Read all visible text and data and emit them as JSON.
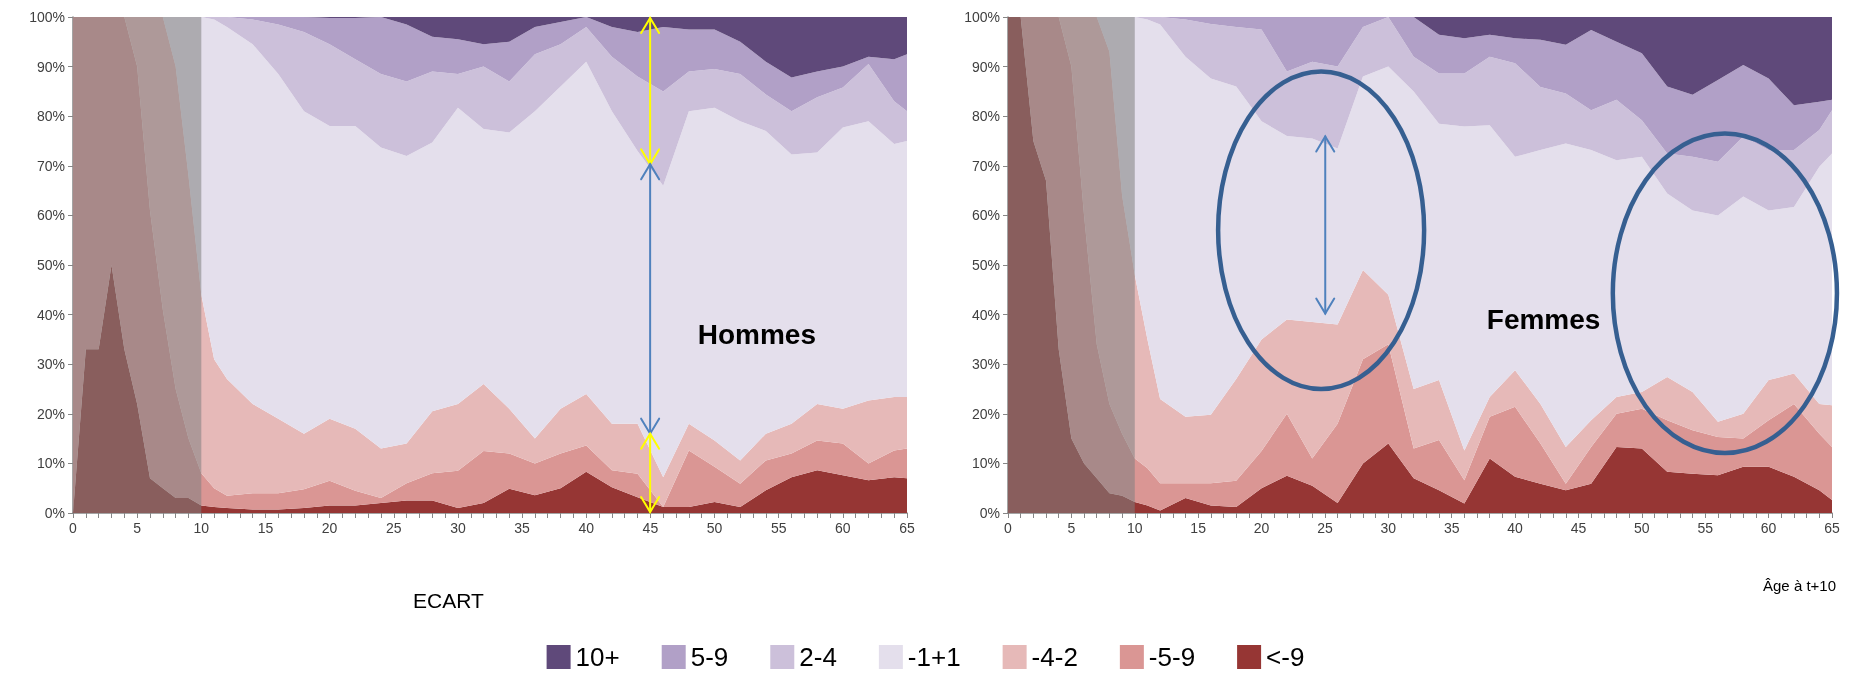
{
  "chart_data": [
    {
      "type": "area",
      "stacked": true,
      "xlabel": "ECART",
      "annotations": [
        "Hommes"
      ],
      "legend": "bottom",
      "x": [
        0,
        1,
        2,
        3,
        4,
        5,
        6,
        7,
        8,
        9,
        10,
        11,
        12,
        14,
        16,
        18,
        20,
        22,
        24,
        26,
        28,
        30,
        32,
        34,
        36,
        38,
        40,
        42,
        44,
        46,
        48,
        50,
        52,
        54,
        56,
        58,
        60,
        62,
        64,
        65
      ],
      "xlim": [
        0,
        65
      ],
      "xticks": [
        0,
        {
          "value": 1,
          "label": null
        },
        {
          "value": 2,
          "label": null
        },
        {
          "value": 3,
          "label": null
        },
        {
          "value": 4,
          "label": null
        },
        5,
        {
          "value": 6,
          "label": null
        },
        {
          "value": 7,
          "label": null
        },
        {
          "value": 8,
          "label": null
        },
        {
          "value": 9,
          "label": null
        },
        10,
        {
          "value": 11,
          "label": null
        },
        {
          "value": 12,
          "label": null
        },
        {
          "value": 13,
          "label": null
        },
        {
          "value": 14,
          "label": null
        },
        15,
        {
          "value": 16,
          "label": null
        },
        {
          "value": 17,
          "label": null
        },
        {
          "value": 18,
          "label": null
        },
        {
          "value": 19,
          "label": null
        },
        20,
        {
          "value": 21,
          "label": null
        },
        {
          "value": 22,
          "label": null
        },
        {
          "value": 23,
          "label": null
        },
        {
          "value": 24,
          "label": null
        },
        25,
        {
          "value": 26,
          "label": null
        },
        {
          "value": 27,
          "label": null
        },
        {
          "value": 28,
          "label": null
        },
        {
          "value": 29,
          "label": null
        },
        30,
        {
          "value": 31,
          "label": null
        },
        {
          "value": 32,
          "label": null
        },
        {
          "value": 33,
          "label": null
        },
        {
          "value": 34,
          "label": null
        },
        35,
        {
          "value": 36,
          "label": null
        },
        {
          "value": 37,
          "label": null
        },
        {
          "value": 38,
          "label": null
        },
        {
          "value": 39,
          "label": null
        },
        40,
        {
          "value": 41,
          "label": null
        },
        {
          "value": 42,
          "label": null
        },
        {
          "value": 43,
          "label": null
        },
        {
          "value": 44,
          "label": null
        },
        45,
        {
          "value": 46,
          "label": null
        },
        {
          "value": 47,
          "label": null
        },
        {
          "value": 48,
          "label": null
        },
        {
          "value": 49,
          "label": null
        },
        50,
        {
          "value": 51,
          "label": null
        },
        {
          "value": 52,
          "label": null
        },
        {
          "value": 53,
          "label": null
        },
        {
          "value": 54,
          "label": null
        },
        55,
        {
          "value": 56,
          "label": null
        },
        {
          "value": 57,
          "label": null
        },
        {
          "value": 58,
          "label": null
        },
        {
          "value": 59,
          "label": null
        },
        60,
        {
          "value": 61,
          "label": null
        },
        {
          "value": 62,
          "label": null
        },
        {
          "value": 63,
          "label": null
        },
        {
          "value": 64,
          "label": null
        },
        65
      ],
      "ylim": [
        0,
        100
      ],
      "yticks": [
        {
          "value": 0,
          "label": "0%"
        },
        {
          "value": 10,
          "label": "10%"
        },
        {
          "value": 20,
          "label": "20%"
        },
        {
          "value": 30,
          "label": "30%"
        },
        {
          "value": 40,
          "label": "40%"
        },
        {
          "value": 50,
          "label": "50%"
        },
        {
          "value": 60,
          "label": "60%"
        },
        {
          "value": 70,
          "label": "70%"
        },
        {
          "value": 80,
          "label": "80%"
        },
        {
          "value": 90,
          "label": "90%"
        },
        {
          "value": 100,
          "label": "100%"
        }
      ],
      "bands": [
        {
          "axis": "x",
          "from": 0,
          "to": 10,
          "color": "#808080"
        }
      ],
      "series": [
        {
          "name": "<-9",
          "color": "#963634",
          "values": [
            0,
            33,
            33,
            50,
            33,
            22,
            7,
            5,
            3,
            3,
            1.5,
            1.2,
            1,
            0.7,
            0.7,
            1,
            1.5,
            1.5,
            2,
            2.5,
            2.5,
            1,
            2,
            4.9,
            3.6,
            5,
            8.3,
            5.2,
            3.2,
            1.2,
            1.2,
            2.2,
            1.2,
            4.6,
            7.2,
            8.6,
            7.6,
            6.6,
            7.2,
            7
          ]
        },
        {
          "name": "-5-9",
          "color": "#da9694",
          "values": [
            100,
            67,
            67,
            50,
            67,
            68,
            54,
            36,
            22,
            12,
            6.5,
            3.8,
            2.5,
            3.3,
            3.3,
            3.8,
            5,
            3,
            1,
            3.5,
            5.5,
            7.5,
            10.5,
            7.1,
            6.4,
            7,
            5.3,
            3.4,
            4.7,
            0,
            11.4,
            7.1,
            4.7,
            6,
            4.8,
            6,
            6.4,
            3.4,
            5.4,
            6
          ]
        },
        {
          "name": "-4-2",
          "color": "#e6b9b8",
          "values": [
            0,
            0,
            0,
            0,
            0,
            10,
            39,
            59,
            65,
            53,
            36,
            26,
            23.5,
            18,
            15,
            11.2,
            12.5,
            12.5,
            10,
            8,
            12.5,
            13.5,
            13.5,
            9,
            5,
            9,
            10.4,
            9.4,
            10.1,
            6,
            5.4,
            5.3,
            4.7,
            5.4,
            6,
            7.4,
            7,
            12.7,
            10.8,
            10.4
          ]
        },
        {
          "name": "-1+1",
          "color": "#e4dfec",
          "values": [
            0,
            0,
            0,
            0,
            0,
            0,
            0,
            0,
            10,
            32,
            56,
            68.5,
            71,
            72.5,
            69.5,
            65,
            59,
            61,
            60.7,
            58,
            54.2,
            59.7,
            51.4,
            55.7,
            66,
            65,
            67,
            63,
            55,
            58.8,
            63,
            67.1,
            68.4,
            61,
            54.3,
            50.7,
            56.7,
            56.3,
            51,
            51.6
          ]
        },
        {
          "name": "2-4",
          "color": "#ccc0da",
          "values": [
            0,
            0,
            0,
            0,
            0,
            0,
            0,
            0,
            0,
            0,
            0,
            0.5,
            2,
            5,
            10,
            16,
            16.5,
            13.5,
            14.8,
            15,
            14.3,
            6.8,
            12.6,
            10.3,
            11.5,
            8.5,
            7,
            11,
            15,
            19,
            8,
            7.8,
            9.5,
            7.4,
            8.7,
            11.1,
            8.1,
            11.5,
            8.6,
            6
          ]
        },
        {
          "name": "5-9",
          "color": "#b1a0c7",
          "values": [
            0,
            0,
            0,
            0,
            0,
            0,
            0,
            0,
            0,
            0,
            0,
            0,
            0,
            0.5,
            1.5,
            3,
            5.3,
            8.3,
            11.5,
            11.5,
            7,
            7,
            4.5,
            8,
            5.5,
            4.5,
            2,
            6,
            9,
            13,
            8.5,
            8,
            6.5,
            6.6,
            6.8,
            5.2,
            4.2,
            1.5,
            8.5,
            11.5
          ]
        },
        {
          "name": "10+",
          "color": "#5f497a",
          "values": [
            0,
            0,
            0,
            0,
            0,
            0,
            0,
            0,
            0,
            0,
            0,
            0,
            0,
            0,
            0,
            0,
            0.2,
            0.2,
            0,
            1.5,
            4,
            4.5,
            5.5,
            5,
            2,
            1,
            0,
            2,
            3,
            2,
            2.5,
            2.5,
            5,
            9,
            12.2,
            11,
            10,
            8,
            8.5,
            7.5
          ]
        }
      ]
    },
    {
      "type": "area",
      "stacked": true,
      "xlabel": "Âge à t+10",
      "annotations": [
        "Femmes"
      ],
      "legend": "bottom",
      "x": [
        0,
        1,
        2,
        3,
        4,
        5,
        6,
        7,
        8,
        9,
        10,
        11,
        12,
        14,
        16,
        18,
        20,
        22,
        24,
        26,
        28,
        30,
        32,
        34,
        36,
        38,
        40,
        42,
        44,
        46,
        48,
        50,
        52,
        54,
        56,
        58,
        60,
        62,
        64,
        65
      ],
      "xlim": [
        0,
        65
      ],
      "xticks": [
        0,
        {
          "value": 1,
          "label": null
        },
        {
          "value": 2,
          "label": null
        },
        {
          "value": 3,
          "label": null
        },
        {
          "value": 4,
          "label": null
        },
        5,
        {
          "value": 6,
          "label": null
        },
        {
          "value": 7,
          "label": null
        },
        {
          "value": 8,
          "label": null
        },
        {
          "value": 9,
          "label": null
        },
        10,
        {
          "value": 11,
          "label": null
        },
        {
          "value": 12,
          "label": null
        },
        {
          "value": 13,
          "label": null
        },
        {
          "value": 14,
          "label": null
        },
        15,
        {
          "value": 16,
          "label": null
        },
        {
          "value": 17,
          "label": null
        },
        {
          "value": 18,
          "label": null
        },
        {
          "value": 19,
          "label": null
        },
        20,
        {
          "value": 21,
          "label": null
        },
        {
          "value": 22,
          "label": null
        },
        {
          "value": 23,
          "label": null
        },
        {
          "value": 24,
          "label": null
        },
        25,
        {
          "value": 26,
          "label": null
        },
        {
          "value": 27,
          "label": null
        },
        {
          "value": 28,
          "label": null
        },
        {
          "value": 29,
          "label": null
        },
        30,
        {
          "value": 31,
          "label": null
        },
        {
          "value": 32,
          "label": null
        },
        {
          "value": 33,
          "label": null
        },
        {
          "value": 34,
          "label": null
        },
        35,
        {
          "value": 36,
          "label": null
        },
        {
          "value": 37,
          "label": null
        },
        {
          "value": 38,
          "label": null
        },
        {
          "value": 39,
          "label": null
        },
        40,
        {
          "value": 41,
          "label": null
        },
        {
          "value": 42,
          "label": null
        },
        {
          "value": 43,
          "label": null
        },
        {
          "value": 44,
          "label": null
        },
        45,
        {
          "value": 46,
          "label": null
        },
        {
          "value": 47,
          "label": null
        },
        {
          "value": 48,
          "label": null
        },
        {
          "value": 49,
          "label": null
        },
        50,
        {
          "value": 51,
          "label": null
        },
        {
          "value": 52,
          "label": null
        },
        {
          "value": 53,
          "label": null
        },
        {
          "value": 54,
          "label": null
        },
        55,
        {
          "value": 56,
          "label": null
        },
        {
          "value": 57,
          "label": null
        },
        {
          "value": 58,
          "label": null
        },
        {
          "value": 59,
          "label": null
        },
        60,
        {
          "value": 61,
          "label": null
        },
        {
          "value": 62,
          "label": null
        },
        {
          "value": 63,
          "label": null
        },
        {
          "value": 64,
          "label": null
        },
        65
      ],
      "ylim": [
        0,
        100
      ],
      "yticks": [
        {
          "value": 0,
          "label": "0%"
        },
        {
          "value": 10,
          "label": "10%"
        },
        {
          "value": 20,
          "label": "20%"
        },
        {
          "value": 30,
          "label": "30%"
        },
        {
          "value": 40,
          "label": "40%"
        },
        {
          "value": 50,
          "label": "50%"
        },
        {
          "value": 60,
          "label": "60%"
        },
        {
          "value": 70,
          "label": "70%"
        },
        {
          "value": 80,
          "label": "80%"
        },
        {
          "value": 90,
          "label": "90%"
        },
        {
          "value": 100,
          "label": "100%"
        }
      ],
      "bands": [
        {
          "axis": "x",
          "from": 0,
          "to": 10,
          "color": "#808080"
        }
      ],
      "series": [
        {
          "name": "<-9",
          "color": "#963634",
          "values": [
            100,
            100,
            75,
            67,
            33,
            15,
            10,
            7,
            4,
            3.5,
            2.2,
            1.5,
            0.5,
            3,
            1.5,
            1.2,
            5,
            7.5,
            5.5,
            2,
            10,
            14,
            7,
            4.6,
            1.9,
            11,
            7.3,
            5.9,
            4.6,
            5.9,
            13.3,
            13,
            8.3,
            7.9,
            7.6,
            9.3,
            9.3,
            7.3,
            4.6,
            2.6
          ]
        },
        {
          "name": "-5-9",
          "color": "#da9694",
          "values": [
            0,
            0,
            25,
            33,
            67,
            75,
            50,
            27,
            18,
            12.5,
            8.8,
            7.5,
            5.5,
            3,
            4.5,
            5.3,
            7.5,
            12.5,
            5.5,
            16,
            21,
            20,
            6,
            10.1,
            4.7,
            8.4,
            14.1,
            8.1,
            1.3,
            7.4,
            6.7,
            8,
            10.4,
            8.8,
            7.7,
            5.7,
            9.4,
            14.7,
            11.4,
            10.7
          ]
        },
        {
          "name": "-4-2",
          "color": "#e6b9b8",
          "values": [
            0,
            0,
            0,
            0,
            0,
            10,
            40,
            66,
            71,
            48,
            37,
            26,
            17,
            13.4,
            13.8,
            20.5,
            22.5,
            19,
            27.5,
            20,
            18,
            10,
            12,
            12.1,
            6,
            4,
            7.4,
            8,
            7.4,
            5.4,
            3.4,
            3.4,
            8.7,
            7.7,
            3.1,
            5,
            8.1,
            6.1,
            6,
            8.4
          ]
        },
        {
          "name": "-1+1",
          "color": "#e4dfec",
          "values": [
            0,
            0,
            0,
            0,
            0,
            0,
            0,
            0,
            7,
            36,
            52,
            64.5,
            75.5,
            72.6,
            67.8,
            59,
            44,
            37,
            37,
            35.5,
            39,
            46,
            60,
            51.7,
            65.3,
            54.8,
            43,
            51.2,
            61.2,
            54.5,
            47.7,
            47.4,
            37,
            36.6,
            41.6,
            43.8,
            34.2,
            33.6,
            47.8,
            50.8
          ]
        },
        {
          "name": "2-4",
          "color": "#ccc0da",
          "values": [
            0,
            0,
            0,
            0,
            0,
            0,
            0,
            0,
            0,
            0,
            0,
            0.5,
            1.5,
            7.5,
            11,
            12,
            18.5,
            13,
            15.5,
            16.5,
            10,
            10,
            7,
            10.1,
            10.7,
            13.8,
            18.9,
            12.7,
            10.1,
            8,
            12.2,
            7.4,
            8.1,
            10.8,
            10.8,
            12.1,
            12.2,
            11.5,
            7.4,
            8.7
          ]
        },
        {
          "name": "5-9",
          "color": "#b1a0c7",
          "values": [
            0,
            0,
            0,
            0,
            0,
            0,
            0,
            0,
            0,
            0,
            0,
            0,
            0,
            0.5,
            1.4,
            2,
            2.5,
            11,
            9,
            10,
            2,
            0,
            8,
            7.8,
            7.1,
            4.4,
            5,
            9.5,
            9.8,
            16.2,
            11.7,
            13.5,
            13.5,
            12.5,
            16.5,
            14.4,
            14.4,
            9,
            5.7,
            2.1
          ]
        },
        {
          "name": "10+",
          "color": "#5f497a",
          "values": [
            0,
            0,
            0,
            0,
            0,
            0,
            0,
            0,
            0,
            0,
            0,
            0,
            0,
            0,
            0,
            0,
            0,
            0,
            0,
            0,
            0,
            0,
            0,
            3.6,
            4.3,
            3.6,
            4.3,
            4.6,
            5.6,
            2.6,
            5,
            7.3,
            14,
            15.7,
            12.7,
            9.7,
            12.4,
            17.8,
            17.1,
            16.7
          ]
        }
      ]
    }
  ]
}
